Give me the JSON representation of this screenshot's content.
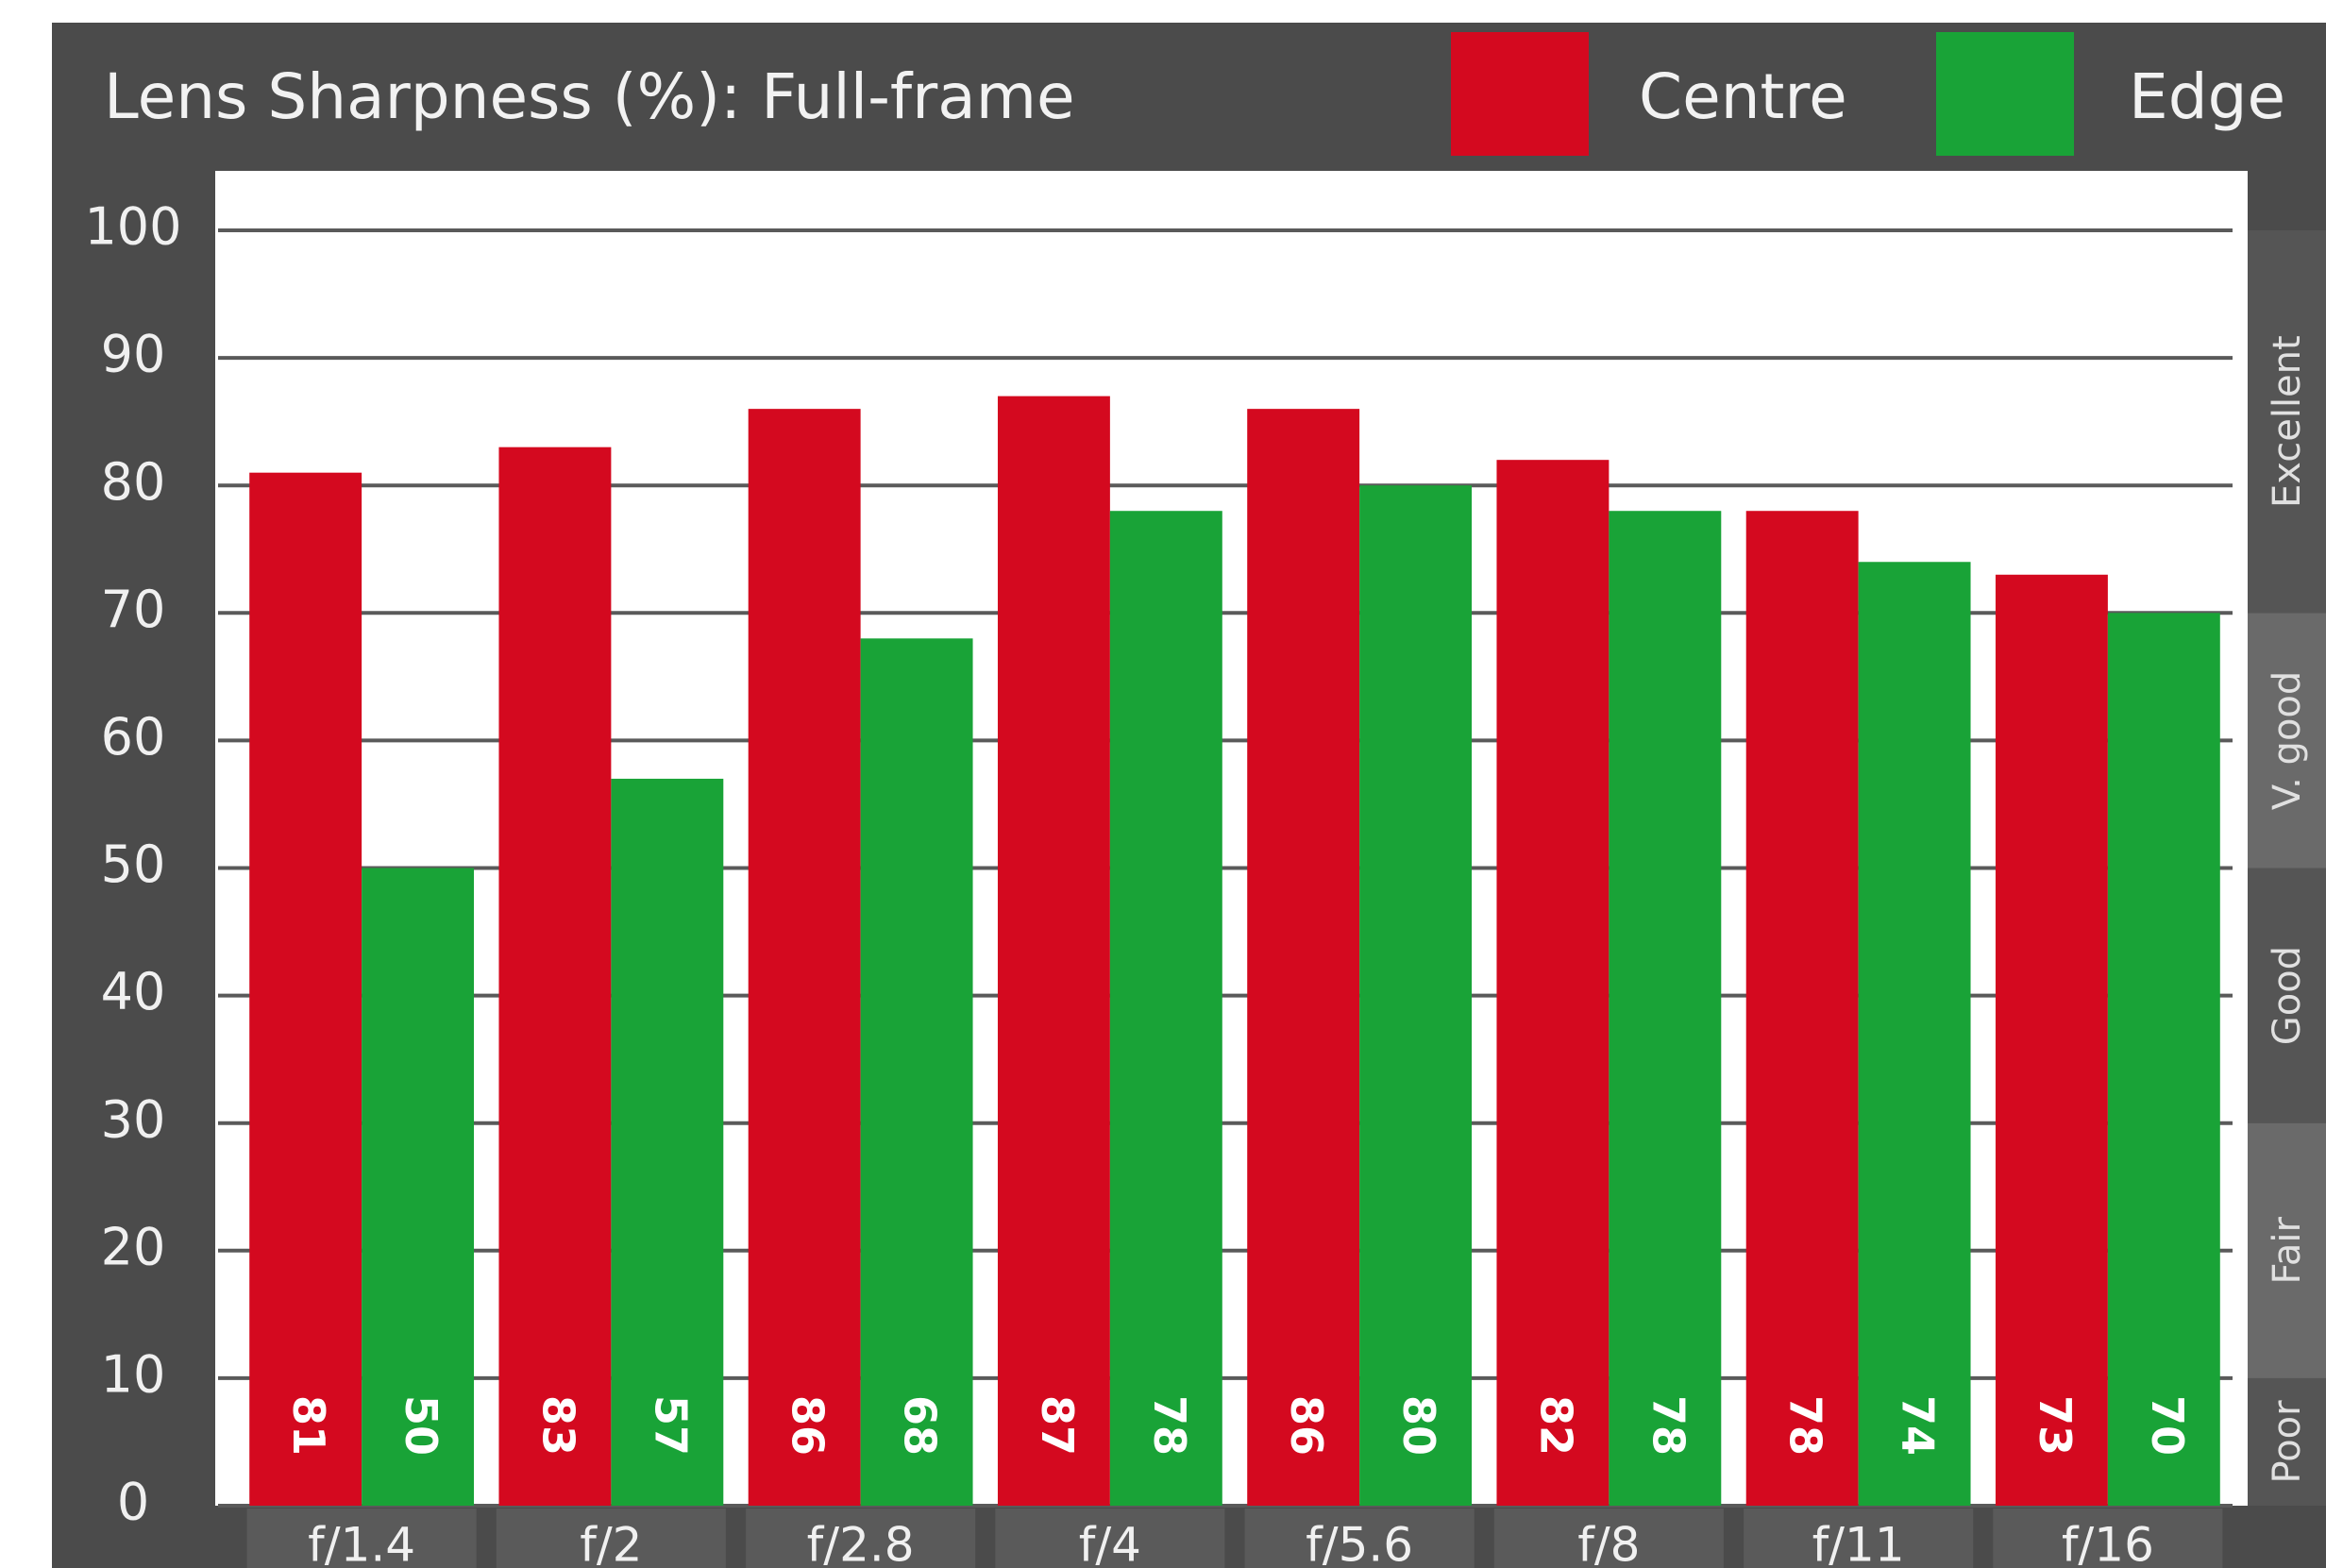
{
  "chart_data": {
    "type": "bar",
    "title": "Lens Sharpness (%): Full-frame",
    "categories": [
      "f/1.4",
      "f/2",
      "f/2.8",
      "f/4",
      "f/5.6",
      "f/8",
      "f/11",
      "f/16"
    ],
    "series": [
      {
        "name": "Centre",
        "color": "#d4091f",
        "values": [
          81,
          83,
          86,
          87,
          86,
          82,
          78,
          73
        ]
      },
      {
        "name": "Edge",
        "color": "#19a337",
        "values": [
          50,
          57,
          68,
          78,
          80,
          78,
          74,
          70
        ]
      }
    ],
    "ylim": [
      0,
      100
    ],
    "yticks": [
      0,
      10,
      20,
      30,
      40,
      50,
      60,
      70,
      80,
      90,
      100
    ],
    "grid": true,
    "ratings": [
      {
        "label": "Poor",
        "from": 0,
        "to": 10
      },
      {
        "label": "Fair",
        "from": 10,
        "to": 30
      },
      {
        "label": "Good",
        "from": 30,
        "to": 50
      },
      {
        "label": "V. good",
        "from": 50,
        "to": 70
      },
      {
        "label": "Excellent",
        "from": 70,
        "to": 100
      }
    ]
  }
}
